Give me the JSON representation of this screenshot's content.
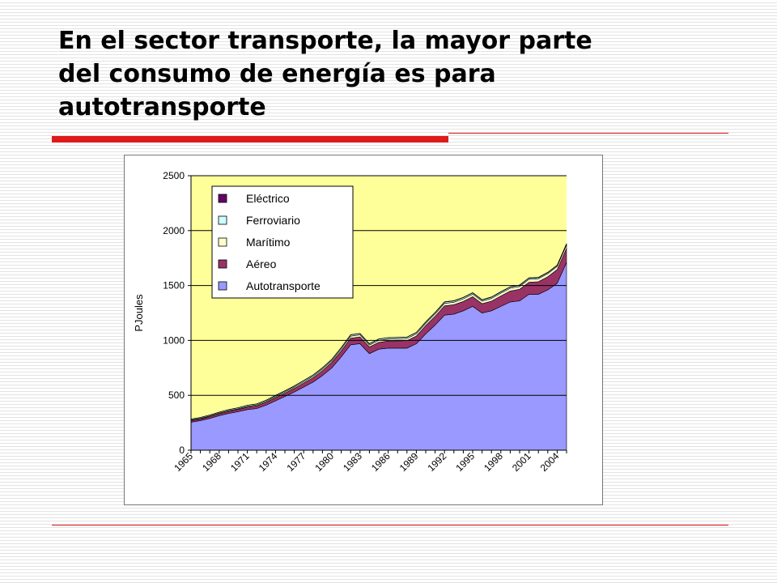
{
  "slide": {
    "title_lines": [
      "En el sector transporte, la mayor parte",
      "del consumo de energía es para",
      "autotransporte"
    ]
  },
  "colors": {
    "accent_red": "#e01a1a",
    "plot_background": "#ffff99"
  },
  "chart_data": {
    "type": "area",
    "stacked": true,
    "ylabel": "PJoules",
    "ylim": [
      0,
      2500
    ],
    "yticks": [
      0,
      500,
      1000,
      1500,
      2000,
      2500
    ],
    "x": [
      1965,
      1966,
      1967,
      1968,
      1969,
      1970,
      1971,
      1972,
      1973,
      1974,
      1975,
      1976,
      1977,
      1978,
      1979,
      1980,
      1981,
      1982,
      1983,
      1984,
      1985,
      1986,
      1987,
      1988,
      1989,
      1990,
      1991,
      1992,
      1993,
      1994,
      1995,
      1996,
      1997,
      1998,
      1999,
      2000,
      2001,
      2002,
      2003,
      2004,
      2005
    ],
    "xticklabels": [
      "1965",
      "1968",
      "1971",
      "1974",
      "1977",
      "1980",
      "1983",
      "1986",
      "1989",
      "1992",
      "1995",
      "1998",
      "2001",
      "2004"
    ],
    "gridlines": "horizontal",
    "legend_position": "top-left",
    "series": [
      {
        "name": "Autotransporte",
        "color": "#9999ff",
        "values": [
          255,
          270,
          290,
          315,
          335,
          350,
          370,
          380,
          410,
          450,
          490,
          530,
          575,
          620,
          680,
          750,
          850,
          960,
          970,
          880,
          920,
          930,
          930,
          930,
          970,
          1060,
          1140,
          1230,
          1240,
          1270,
          1310,
          1250,
          1270,
          1310,
          1350,
          1360,
          1420,
          1420,
          1460,
          1520,
          1710
        ]
      },
      {
        "name": "Aéreo",
        "color": "#993366",
        "values": [
          15,
          15,
          16,
          17,
          18,
          20,
          22,
          24,
          26,
          28,
          30,
          33,
          36,
          40,
          45,
          50,
          55,
          60,
          62,
          60,
          62,
          64,
          66,
          68,
          70,
          75,
          80,
          85,
          85,
          85,
          88,
          85,
          88,
          95,
          100,
          105,
          110,
          115,
          120,
          125,
          130
        ]
      },
      {
        "name": "Marítimo",
        "color": "#ffffcc",
        "values": [
          5,
          5,
          6,
          6,
          7,
          7,
          8,
          8,
          9,
          10,
          10,
          11,
          12,
          13,
          14,
          15,
          17,
          18,
          18,
          17,
          18,
          18,
          19,
          19,
          20,
          20,
          21,
          22,
          22,
          23,
          23,
          23,
          24,
          25,
          25,
          26,
          27,
          27,
          28,
          28,
          30
        ]
      },
      {
        "name": "Ferroviario",
        "color": "#ccffff",
        "values": [
          8,
          8,
          8,
          8,
          9,
          9,
          9,
          9,
          10,
          10,
          10,
          10,
          11,
          11,
          11,
          12,
          12,
          12,
          12,
          12,
          12,
          12,
          12,
          12,
          12,
          12,
          12,
          12,
          12,
          12,
          12,
          11,
          11,
          11,
          11,
          11,
          11,
          10,
          10,
          10,
          10
        ]
      },
      {
        "name": "Eléctrico",
        "color": "#660066",
        "values": [
          1,
          1,
          1,
          1,
          1,
          1,
          1,
          1,
          1,
          2,
          2,
          2,
          2,
          2,
          2,
          2,
          2,
          2,
          2,
          2,
          2,
          2,
          2,
          2,
          2,
          3,
          3,
          3,
          3,
          3,
          3,
          3,
          3,
          3,
          3,
          3,
          3,
          3,
          3,
          3,
          3
        ]
      }
    ]
  }
}
